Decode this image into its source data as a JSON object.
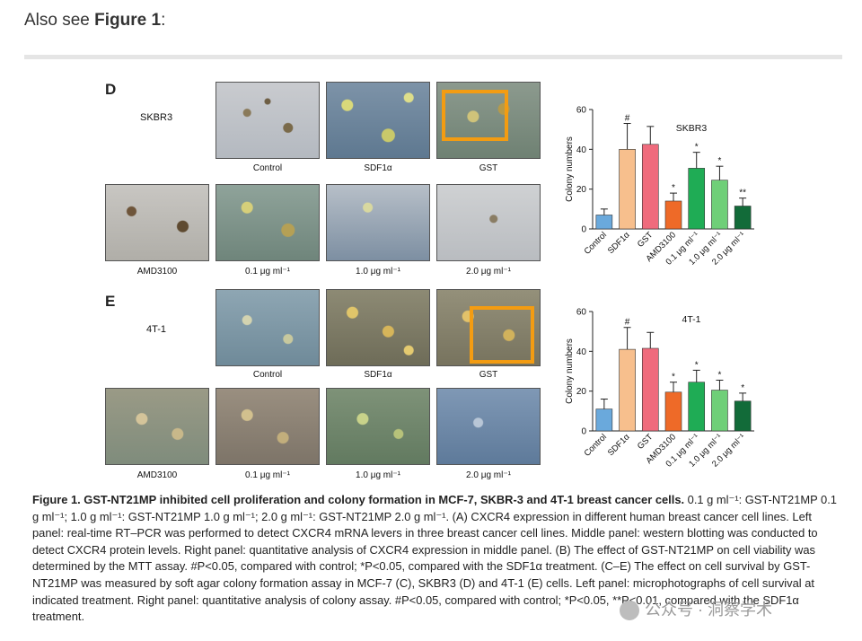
{
  "intro": {
    "prefix": "Also see ",
    "ref": "Figure 1",
    "suffix": ":"
  },
  "panelD": {
    "letter": "D",
    "cell_line": "SKBR3",
    "captions_top": [
      "Control",
      "SDF1α",
      "GST"
    ],
    "captions_bottom": [
      "AMD3100",
      "0.1 μg ml⁻¹",
      "1.0 μg ml⁻¹",
      "2.0 μg ml⁻¹"
    ]
  },
  "panelE": {
    "letter": "E",
    "cell_line": "4T-1",
    "captions_top": [
      "Control",
      "SDF1α",
      "GST"
    ],
    "captions_bottom": [
      "AMD3100",
      "0.1 μg ml⁻¹",
      "1.0 μg ml⁻¹",
      "2.0 μg ml⁻¹"
    ]
  },
  "chart_data": [
    {
      "type": "bar",
      "title": "SKBR3",
      "ylabel": "Colony numbers",
      "ylim": [
        0,
        60
      ],
      "yticks": [
        0,
        20,
        40,
        60
      ],
      "categories": [
        "Control",
        "SDF1α",
        "GST",
        "AMD3100",
        "0.1 μg ml⁻¹",
        "1.0 μg ml⁻¹",
        "2.0 μg ml⁻¹"
      ],
      "values": [
        7,
        40,
        42.5,
        14,
        30.5,
        24.5,
        11.5
      ],
      "errors": [
        3,
        13,
        9,
        4,
        8,
        7,
        4
      ],
      "annotations": [
        "",
        "#",
        "",
        "*",
        "*",
        "*",
        "**"
      ],
      "colors": [
        "#6aa9dc",
        "#f7bf8d",
        "#ef6b7d",
        "#ee6a28",
        "#1fac55",
        "#6fcf78",
        "#126b39"
      ]
    },
    {
      "type": "bar",
      "title": "4T-1",
      "ylabel": "Colony numbers",
      "ylim": [
        0,
        60
      ],
      "yticks": [
        0,
        20,
        40,
        60
      ],
      "categories": [
        "Control",
        "SDF1α",
        "GST",
        "AMD3100",
        "0.1 μg ml⁻¹",
        "1.0 μg ml⁻¹",
        "2.0 μg ml⁻¹"
      ],
      "values": [
        11,
        41,
        41.5,
        19.5,
        24.5,
        20.5,
        15
      ],
      "errors": [
        5,
        11,
        8,
        5,
        6,
        5,
        4
      ],
      "annotations": [
        "",
        "#",
        "",
        "*",
        "*",
        "*",
        "*"
      ],
      "colors": [
        "#6aa9dc",
        "#f7bf8d",
        "#ef6b7d",
        "#ee6a28",
        "#1fac55",
        "#6fcf78",
        "#126b39"
      ]
    }
  ],
  "caption": {
    "title": "Figure 1. GST-NT21MP inhibited cell proliferation and colony formation in MCF-7, SKBR-3 and 4T-1 breast cancer cells.",
    "body": " 0.1 g ml⁻¹: GST-NT21MP 0.1 g ml⁻¹; 1.0 g ml⁻¹: GST-NT21MP 1.0 g ml⁻¹; 2.0 g ml⁻¹: GST-NT21MP 2.0 g ml⁻¹. (A) CXCR4 expression in different human breast cancer cell lines. Left panel: real-time RT–PCR was performed to detect CXCR4 mRNA levers in three breast cancer cell lines. Middle panel: western blotting was conducted to detect CXCR4 protein levels. Right panel: quantitative analysis of CXCR4 expression in middle panel. (B) The effect of GST-NT21MP on cell viability was determined by the MTT assay. #P<0.05, compared with control; *P<0.05, compared with the SDF1α treatment. (C–E) The effect on cell survival by GST-NT21MP was measured by soft agar colony formation assay in MCF-7 (C), SKBR3 (D) and 4T-1 (E) cells. Left panel: microphotographs of cell survival at indicated treatment. Right panel: quantitative analysis of colony assay. #P<0.05, compared with control; *P<0.05, **P<0.01, compared with the SDF1α treatment."
  },
  "watermark": "公众号 · 洞察学术",
  "colors": {
    "highlight": "#f39c12"
  }
}
